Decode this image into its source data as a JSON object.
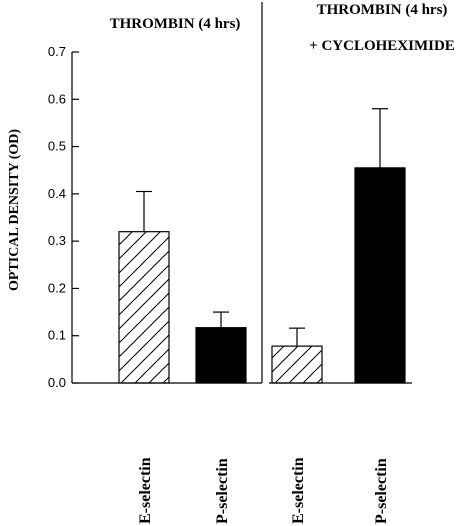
{
  "chart_data": {
    "type": "bar",
    "title": "",
    "ylabel": "OPTICAL DENSITY (OD)",
    "xlabel": "",
    "ylim": [
      0,
      0.7
    ],
    "yticks": [
      "0.0",
      "0.1",
      "0.2",
      "0.3",
      "0.4",
      "0.5",
      "0.6",
      "0.7"
    ],
    "ytick_values": [
      0,
      0.1,
      0.2,
      0.3,
      0.4,
      0.5,
      0.6,
      0.7
    ],
    "grid": false,
    "panels": [
      {
        "title_line1": "THROMBIN (4 hrs)",
        "title_line2": "",
        "categories": [
          "E-selectin",
          "P-selectin"
        ],
        "values": [
          0.32,
          0.117
        ],
        "errors": [
          0.085,
          0.033
        ],
        "fills": [
          "hatched",
          "solid"
        ]
      },
      {
        "title_line1": "THROMBIN (4 hrs)",
        "title_line2": "+ CYCLOHEXIMIDE",
        "categories": [
          "E-selectin",
          "P-selectin"
        ],
        "values": [
          0.078,
          0.455
        ],
        "errors": [
          0.038,
          0.125
        ],
        "fills": [
          "hatched",
          "solid"
        ]
      }
    ]
  }
}
